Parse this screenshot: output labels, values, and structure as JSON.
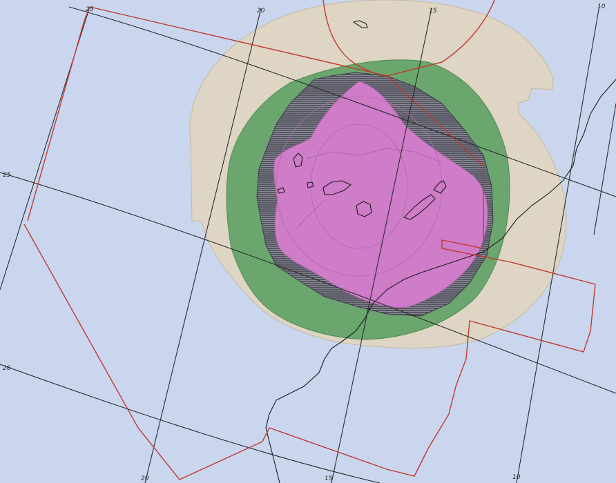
{
  "map": {
    "colors": {
      "ocean": "#c9d6ee",
      "outer_zone": "#ded5c5",
      "green_zone": "#6aa66e",
      "hatched_zone_dark": "#4a4a56",
      "hatched_zone_light": "#8a8a96",
      "magenta_zone": "#cf7cc9",
      "border": "#c0392b",
      "graticule": "#2a2a2a",
      "coast": "#1b1b1b"
    },
    "graticule_labels": {
      "lon_25_top": "25",
      "lon_20_top": "20",
      "lon_15_top": "15",
      "lon_10_top": "10",
      "lat_25_left": "25",
      "lat_20_left": "20",
      "lon_20_bottom": "20",
      "lon_15_bottom": "15",
      "lon_10_bottom": "10"
    }
  }
}
